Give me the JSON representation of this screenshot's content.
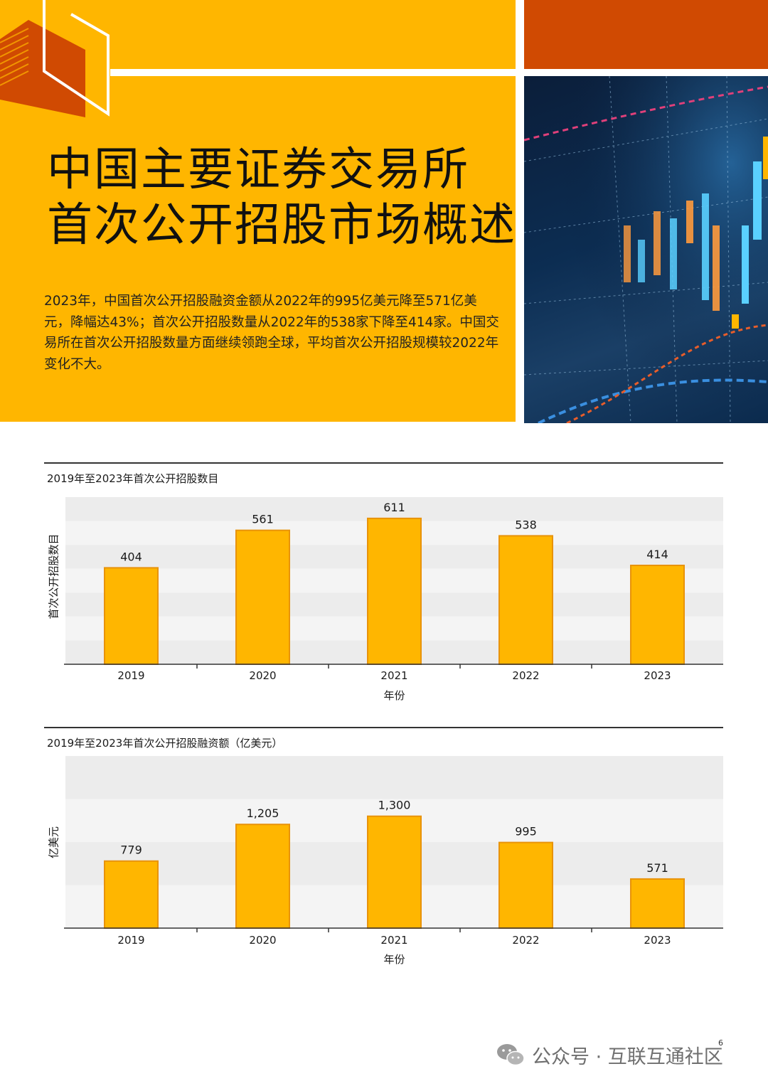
{
  "colors": {
    "accent_orange": "#ffb600",
    "accent_red": "#d04a02",
    "bar_fill": "#ffb600",
    "bar_stroke": "#e8930a",
    "band_light": "#f4f4f4",
    "band_dark": "#ececec"
  },
  "hero": {
    "title_lines": [
      "中国主要证券交易所",
      "首次公开招股市场概述"
    ],
    "intro": "2023年，中国首次公开招股融资金额从2022年的995亿美元降至571亿美元，降幅达43%；首次公开招股数量从2022年的538家下降至414家。中国交易所在首次公开招股数量方面继续领跑全球，平均首次公开招股规模较2022年变化不大。",
    "photo_icon": "stock-candlestick-photo"
  },
  "chart_data": [
    {
      "type": "bar",
      "title": "2019年至2023年首次公开招股数目",
      "xlabel": "年份",
      "ylabel": "首次公开招股数目",
      "categories": [
        "2019",
        "2020",
        "2021",
        "2022",
        "2023"
      ],
      "values": [
        404,
        561,
        611,
        538,
        414
      ],
      "value_labels": [
        "404",
        "561",
        "611",
        "538",
        "414"
      ],
      "ylim": [
        0,
        700
      ],
      "grid_bands": true
    },
    {
      "type": "bar",
      "title": "2019年至2023年首次公开招股融资额（亿美元）",
      "xlabel": "年份",
      "ylabel": "亿美元",
      "categories": [
        "2019",
        "2020",
        "2021",
        "2022",
        "2023"
      ],
      "values": [
        779,
        1205,
        1300,
        995,
        571
      ],
      "value_labels": [
        "779",
        "1,205",
        "1,300",
        "995",
        "571"
      ],
      "ylim": [
        0,
        2000
      ],
      "grid_bands": true
    }
  ],
  "footer": {
    "page_number": "6",
    "watermark": "公众号 · 互联互通社区",
    "watermark_icon": "wechat-icon"
  }
}
